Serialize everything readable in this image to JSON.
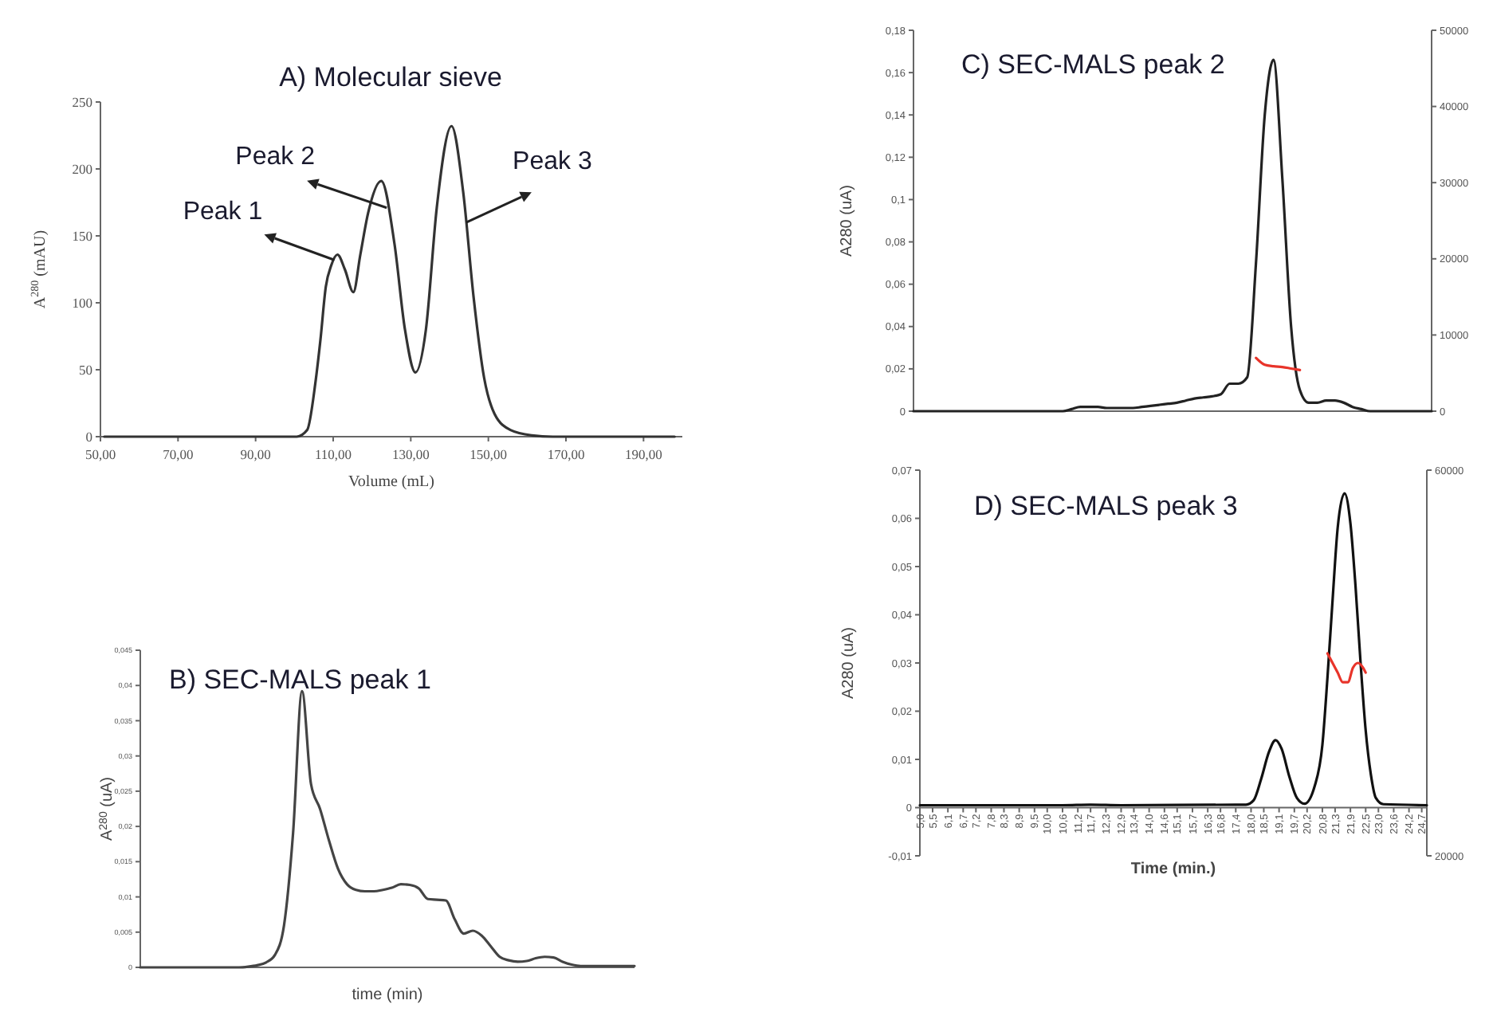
{
  "chart_data": [
    {
      "type": "line",
      "title": "A) Molecular sieve",
      "xlabel": "Volume (mL)",
      "ylabel": "A$^{280}$ (mAU)",
      "xlim": [
        50,
        200
      ],
      "ylim": [
        0,
        250
      ],
      "xticks": [
        {
          "value": 50,
          "label": "50,00"
        },
        {
          "value": 70,
          "label": "70,00"
        },
        {
          "value": 90,
          "label": "90,00"
        },
        {
          "value": 110,
          "label": "110,00"
        },
        {
          "value": 130,
          "label": "130,00"
        },
        {
          "value": 150,
          "label": "150,00"
        },
        {
          "value": 170,
          "label": "170,00"
        },
        {
          "value": 190,
          "label": "190,00"
        }
      ],
      "yticks": [
        0,
        50,
        100,
        150,
        200,
        250
      ],
      "series": [
        {
          "color": "#333333",
          "x": [
            51,
            100.6,
            103.3,
            105.4,
            106.7,
            108.1,
            109.5,
            111.1,
            113,
            115.2,
            117,
            119,
            122.4,
            125.8,
            128.5,
            131.2,
            133.9,
            136.7,
            140.5,
            143.5,
            146.2,
            148.9,
            151.6,
            155.7,
            161.2,
            166.6,
            198
          ],
          "values": [
            0,
            0,
            5,
            40,
            72,
            112,
            128,
            136,
            125,
            108,
            136,
            167,
            191,
            144,
            80,
            48,
            80,
            171,
            232,
            183,
            104,
            44,
            17,
            5,
            1,
            0,
            0
          ]
        }
      ],
      "annotations": [
        {
          "text": "Peak 1",
          "x": 110.3,
          "y": 132
        },
        {
          "text": "Peak 2",
          "x": 123.8,
          "y": 171
        },
        {
          "text": "Peak 3",
          "x": 144.3,
          "y": 160
        }
      ]
    },
    {
      "type": "line",
      "title": "B) SEC-MALS peak 1",
      "xlabel": "time (min)",
      "ylabel": "A$^{280}$ (uA)",
      "ylim": [
        0,
        0.045
      ],
      "yticks": [
        0,
        {
          "value": 0.005,
          "label": "0,005"
        },
        {
          "value": 0.01,
          "label": "0,01"
        },
        {
          "value": 0.015,
          "label": "0,015"
        },
        {
          "value": 0.02,
          "label": "0,02"
        },
        {
          "value": 0.025,
          "label": "0,025"
        },
        {
          "value": 0.03,
          "label": "0,03"
        },
        {
          "value": 0.035,
          "label": "0,035"
        },
        {
          "value": 0.04,
          "label": "0,04"
        },
        {
          "value": 0.045,
          "label": "0,045"
        }
      ],
      "categories": [
        null,
        null,
        null,
        null,
        null,
        null,
        null,
        null,
        null,
        null,
        null,
        null,
        null,
        null,
        null,
        null,
        null,
        null,
        null,
        null,
        null,
        null,
        null,
        null,
        null,
        null,
        null,
        null,
        null,
        null,
        null,
        null,
        null,
        null,
        null,
        null,
        null,
        null,
        null,
        null,
        null,
        null,
        null,
        null,
        null,
        null,
        null,
        null,
        null,
        null,
        null,
        null,
        null,
        null,
        null,
        null
      ],
      "series": [
        {
          "color": "#444444",
          "values": [
            0,
            0,
            0,
            0,
            0,
            0,
            0,
            0,
            0,
            0,
            0,
            0,
            0.0001,
            0.0003,
            0.0007,
            0.0018,
            0.006,
            0.019,
            0.0392,
            0.026,
            0.0225,
            0.018,
            0.014,
            0.0118,
            0.011,
            0.0108,
            0.0108,
            0.011,
            0.0113,
            0.0118,
            0.0117,
            0.0112,
            0.0097,
            0.0096,
            0.0095,
            0.0068,
            0.0048,
            0.0052,
            0.0045,
            0.003,
            0.0015,
            0.001,
            0.0008,
            0.0009,
            0.0013,
            0.0015,
            0.0014,
            0.0008,
            0.0004,
            0.0002,
            0.0002,
            0.0002,
            0.0002,
            0.0002,
            0.0002,
            0.0002
          ]
        }
      ]
    },
    {
      "type": "line",
      "title": "C) SEC-MALS peak 2",
      "ylabel": "A280 (uA)",
      "ylim": [
        0,
        0.18
      ],
      "y2lim": [
        0,
        50000
      ],
      "yticks": [
        0,
        {
          "value": 0.02,
          "label": "0,02"
        },
        {
          "value": 0.04,
          "label": "0,04"
        },
        {
          "value": 0.06,
          "label": "0,06"
        },
        {
          "value": 0.08,
          "label": "0,08"
        },
        {
          "value": 0.1,
          "label": "0,1"
        },
        {
          "value": 0.12,
          "label": "0,12"
        },
        {
          "value": 0.14,
          "label": "0,14"
        },
        {
          "value": 0.16,
          "label": "0,16"
        },
        {
          "value": 0.18,
          "label": "0,18"
        }
      ],
      "y2ticks": [
        0,
        10000,
        20000,
        30000,
        40000,
        50000
      ],
      "categories": [
        null,
        null,
        null,
        null,
        null,
        null,
        null,
        null,
        null,
        null,
        null,
        null,
        null,
        null,
        null,
        null,
        null,
        null,
        null,
        null,
        null,
        null,
        null,
        null,
        null,
        null,
        null,
        null,
        null,
        null,
        null,
        null,
        null,
        null,
        null,
        null,
        null,
        null,
        null,
        null,
        null,
        null,
        null,
        null,
        null,
        null,
        null,
        null,
        null,
        null,
        null,
        null,
        null,
        null,
        null,
        null,
        null,
        null,
        null,
        null
      ],
      "series": [
        {
          "color": "#222222",
          "values": [
            0,
            0,
            0,
            0,
            0,
            0,
            0,
            0,
            0,
            0,
            0,
            0,
            0,
            0,
            0,
            0,
            0,
            0,
            0.001,
            0.002,
            0.002,
            0.002,
            0.0015,
            0.0015,
            0.0015,
            0.0015,
            0.002,
            0.0025,
            0.003,
            0.0035,
            0.004,
            0.005,
            0.006,
            0.0065,
            0.007,
            0.008,
            0.013,
            0.013,
            0.016,
            0.07,
            0.14,
            0.166,
            0.11,
            0.04,
            0.01,
            0.004,
            0.004,
            0.005,
            0.005,
            0.004,
            0.002,
            0.001,
            0,
            0,
            0,
            0,
            0,
            0,
            0,
            0
          ]
        },
        {
          "color": "#e8342a",
          "axis": "y2",
          "values": [
            null,
            null,
            null,
            null,
            null,
            null,
            null,
            null,
            null,
            null,
            null,
            null,
            null,
            null,
            null,
            null,
            null,
            null,
            null,
            null,
            null,
            null,
            null,
            null,
            null,
            null,
            null,
            null,
            null,
            null,
            null,
            null,
            null,
            null,
            null,
            null,
            null,
            null,
            null,
            7000,
            6100,
            5900,
            5800,
            5600,
            5400,
            null,
            null,
            null,
            null,
            null,
            null,
            null,
            null,
            null,
            null,
            null,
            null,
            null,
            null,
            null
          ]
        }
      ]
    },
    {
      "type": "line",
      "title": "D) SEC-MALS peak 3",
      "xlabel": "Time (min.)",
      "ylabel": "A280 (uA)",
      "xlim": [
        5,
        24.9
      ],
      "ylim": [
        -0.01,
        0.07
      ],
      "y2lim": [
        20000,
        60000
      ],
      "xticks": [
        {
          "value": 5,
          "label": "5,0"
        },
        {
          "value": 5.5,
          "label": "5,5"
        },
        {
          "value": 6.1,
          "label": "6,1"
        },
        {
          "value": 6.7,
          "label": "6,7"
        },
        {
          "value": 7.2,
          "label": "7,2"
        },
        {
          "value": 7.8,
          "label": "7,8"
        },
        {
          "value": 8.3,
          "label": "8,3"
        },
        {
          "value": 8.9,
          "label": "8,9"
        },
        {
          "value": 9.5,
          "label": "9,5"
        },
        {
          "value": 10,
          "label": "10,0"
        },
        {
          "value": 10.6,
          "label": "10,6"
        },
        {
          "value": 11.2,
          "label": "11,2"
        },
        {
          "value": 11.7,
          "label": "11,7"
        },
        {
          "value": 12.3,
          "label": "12,3"
        },
        {
          "value": 12.9,
          "label": "12,9"
        },
        {
          "value": 13.4,
          "label": "13,4"
        },
        {
          "value": 14,
          "label": "14,0"
        },
        {
          "value": 14.6,
          "label": "14,6"
        },
        {
          "value": 15.1,
          "label": "15,1"
        },
        {
          "value": 15.7,
          "label": "15,7"
        },
        {
          "value": 16.3,
          "label": "16,3"
        },
        {
          "value": 16.8,
          "label": "16,8"
        },
        {
          "value": 17.4,
          "label": "17,4"
        },
        {
          "value": 18,
          "label": "18,0"
        },
        {
          "value": 18.5,
          "label": "18,5"
        },
        {
          "value": 19.1,
          "label": "19,1"
        },
        {
          "value": 19.7,
          "label": "19,7"
        },
        {
          "value": 20.2,
          "label": "20,2"
        },
        {
          "value": 20.8,
          "label": "20,8"
        },
        {
          "value": 21.3,
          "label": "21,3"
        },
        {
          "value": 21.9,
          "label": "21,9"
        },
        {
          "value": 22.5,
          "label": "22,5"
        },
        {
          "value": 23,
          "label": "23,0"
        },
        {
          "value": 23.6,
          "label": "23,6"
        },
        {
          "value": 24.2,
          "label": "24,2"
        },
        {
          "value": 24.7,
          "label": "24,7"
        }
      ],
      "yticks": [
        {
          "value": -0.01,
          "label": "-0,01"
        },
        0,
        {
          "value": 0.01,
          "label": "0,01"
        },
        {
          "value": 0.02,
          "label": "0,02"
        },
        {
          "value": 0.03,
          "label": "0,03"
        },
        {
          "value": 0.04,
          "label": "0,04"
        },
        {
          "value": 0.05,
          "label": "0,05"
        },
        {
          "value": 0.06,
          "label": "0,06"
        },
        {
          "value": 0.07,
          "label": "0,07"
        }
      ],
      "y2ticks": [
        20000,
        60000
      ],
      "series": [
        {
          "color": "#111111",
          "x": [
            5,
            10.6,
            11.7,
            12.9,
            17.4,
            17.8,
            18.1,
            18.4,
            18.7,
            18.96,
            19.2,
            19.5,
            19.8,
            20.1,
            20.5,
            20.8,
            21,
            21.2,
            21.4,
            21.67,
            21.9,
            22.1,
            22.3,
            22.5,
            22.7,
            22.9,
            23.2,
            24.9
          ],
          "values": [
            0.0005,
            0.0005,
            0.0006,
            0.0005,
            0.0006,
            0.0006,
            0.0015,
            0.006,
            0.0115,
            0.014,
            0.0122,
            0.0065,
            0.002,
            0.0008,
            0.0045,
            0.013,
            0.027,
            0.043,
            0.058,
            0.0652,
            0.059,
            0.046,
            0.03,
            0.016,
            0.007,
            0.002,
            0.0007,
            0.0005
          ]
        },
        {
          "color": "#e8342a",
          "axis": "y2",
          "x": [
            21,
            21.2,
            21.4,
            21.6,
            21.8,
            22,
            22.2,
            22.4,
            22.5
          ],
          "values": [
            41000,
            40000,
            39000,
            38000,
            38000,
            39500,
            40000,
            39500,
            39000
          ]
        }
      ]
    }
  ]
}
